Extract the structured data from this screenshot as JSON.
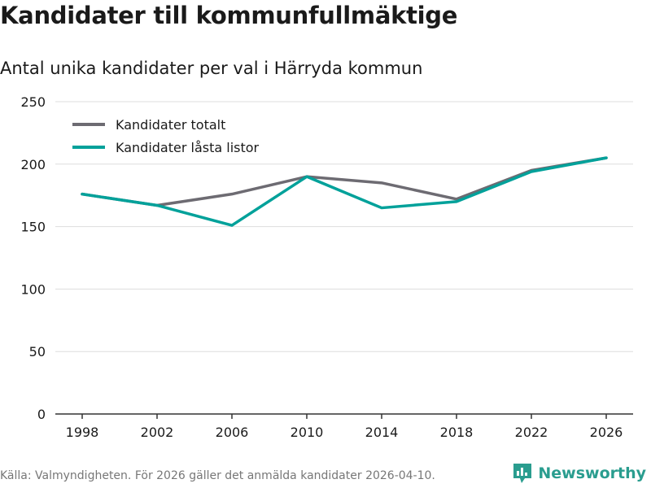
{
  "chart_data": {
    "type": "line",
    "title": "Kandidater till kommunfullmäktige",
    "subtitle": "Antal unika kandidater per val i Härryda kommun",
    "x": [
      "1998",
      "2002",
      "2006",
      "2010",
      "2014",
      "2018",
      "2022",
      "2026"
    ],
    "series": [
      {
        "name": "Kandidater totalt",
        "color": "#6d6b72",
        "values": [
          176,
          167,
          176,
          190,
          185,
          172,
          195,
          205
        ]
      },
      {
        "name": "Kandidater låsta listor",
        "color": "#00a19a",
        "values": [
          176,
          167,
          151,
          190,
          165,
          170,
          194,
          205
        ]
      }
    ],
    "ylim": [
      0,
      250
    ],
    "yticks": [
      "0",
      "50",
      "100",
      "150",
      "200",
      "250"
    ],
    "ytick_values": [
      0,
      50,
      100,
      150,
      200,
      250
    ],
    "legend_position": "top-left",
    "grid": true,
    "xlabel": "",
    "ylabel": ""
  },
  "footer": {
    "source": "Källa: Valmyndigheten. För 2026 gäller det anmälda kandidater 2026-04-10."
  },
  "brand": {
    "name": "Newsworthy",
    "color": "#2a9d8f",
    "icon": "newsworthy-logo-icon"
  }
}
